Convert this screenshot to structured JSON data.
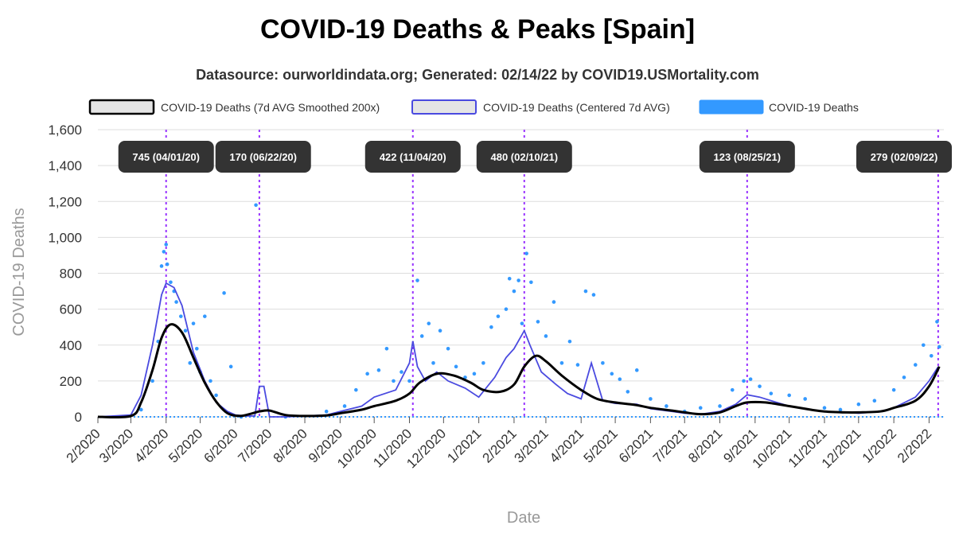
{
  "chart_data": {
    "type": "line",
    "title": "COVID-19 Deaths & Peaks [Spain]",
    "subtitle": "Datasource: ourworldindata.org; Generated: 02/14/22 by COVID19.USMortality.com",
    "xlabel": "Date",
    "ylabel": "COVID-19 Deaths",
    "ylim": [
      0,
      1600
    ],
    "y_ticks": [
      "0",
      "200",
      "400",
      "600",
      "800",
      "1,000",
      "1,200",
      "1,400",
      "1,600"
    ],
    "x_ticks": [
      "2/2020",
      "3/2020",
      "4/2020",
      "5/2020",
      "6/2020",
      "7/2020",
      "8/2020",
      "9/2020",
      "10/2020",
      "11/2020",
      "12/2020",
      "1/2021",
      "2/2021",
      "3/2021",
      "4/2021",
      "5/2021",
      "6/2021",
      "7/2021",
      "8/2021",
      "9/2021",
      "10/2021",
      "11/2021",
      "12/2021",
      "1/2022",
      "2/2022"
    ],
    "grid": true,
    "legend_position": "top",
    "colors": {
      "smoothed": "#000000",
      "avg7": "#4a4ae0",
      "deaths": "#3399ff",
      "peak_line": "#9933ff",
      "peak_box": "#333333"
    },
    "series": [
      {
        "name": "COVID-19 Deaths (7d AVG Smoothed 200x)",
        "style": "line",
        "x": [
          "2020-02-01",
          "2020-03-01",
          "2020-03-10",
          "2020-03-20",
          "2020-03-28",
          "2020-04-05",
          "2020-04-15",
          "2020-04-25",
          "2020-05-05",
          "2020-05-15",
          "2020-05-25",
          "2020-06-05",
          "2020-06-15",
          "2020-06-22",
          "2020-07-01",
          "2020-07-15",
          "2020-08-01",
          "2020-08-20",
          "2020-09-01",
          "2020-09-20",
          "2020-10-01",
          "2020-10-20",
          "2020-11-01",
          "2020-11-10",
          "2020-11-25",
          "2020-12-10",
          "2020-12-25",
          "2021-01-05",
          "2021-01-20",
          "2021-02-01",
          "2021-02-10",
          "2021-02-20",
          "2021-03-01",
          "2021-03-15",
          "2021-04-01",
          "2021-04-15",
          "2021-05-01",
          "2021-05-20",
          "2021-06-01",
          "2021-06-20",
          "2021-07-01",
          "2021-07-15",
          "2021-08-01",
          "2021-08-15",
          "2021-08-25",
          "2021-09-10",
          "2021-10-01",
          "2021-10-20",
          "2021-11-01",
          "2021-11-20",
          "2021-12-01",
          "2021-12-20",
          "2022-01-01",
          "2022-01-20",
          "2022-02-01",
          "2022-02-10"
        ],
        "y": [
          0,
          5,
          80,
          260,
          440,
          515,
          470,
          330,
          190,
          85,
          20,
          5,
          18,
          30,
          35,
          10,
          5,
          8,
          20,
          40,
          60,
          90,
          130,
          190,
          240,
          230,
          190,
          150,
          140,
          180,
          280,
          340,
          310,
          230,
          150,
          100,
          80,
          65,
          50,
          35,
          25,
          15,
          25,
          60,
          80,
          80,
          60,
          40,
          30,
          25,
          25,
          30,
          50,
          90,
          170,
          280
        ]
      },
      {
        "name": "COVID-19 Deaths (Centered 7d AVG)",
        "style": "line",
        "x": [
          "2020-02-01",
          "2020-03-01",
          "2020-03-10",
          "2020-03-20",
          "2020-03-28",
          "2020-04-01",
          "2020-04-08",
          "2020-04-15",
          "2020-04-25",
          "2020-05-05",
          "2020-05-15",
          "2020-05-25",
          "2020-06-01",
          "2020-06-10",
          "2020-06-18",
          "2020-06-22",
          "2020-06-26",
          "2020-07-01",
          "2020-07-15",
          "2020-08-01",
          "2020-08-20",
          "2020-09-01",
          "2020-09-20",
          "2020-10-01",
          "2020-10-20",
          "2020-11-01",
          "2020-11-04",
          "2020-11-08",
          "2020-11-15",
          "2020-11-25",
          "2020-12-05",
          "2020-12-20",
          "2021-01-01",
          "2021-01-15",
          "2021-01-25",
          "2021-02-01",
          "2021-02-10",
          "2021-02-15",
          "2021-02-25",
          "2021-03-10",
          "2021-03-20",
          "2021-04-01",
          "2021-04-10",
          "2021-04-20",
          "2021-05-01",
          "2021-05-20",
          "2021-06-01",
          "2021-06-20",
          "2021-07-01",
          "2021-07-15",
          "2021-08-01",
          "2021-08-15",
          "2021-08-25",
          "2021-09-05",
          "2021-09-20",
          "2021-10-01",
          "2021-10-20",
          "2021-11-01",
          "2021-11-20",
          "2021-12-01",
          "2021-12-20",
          "2022-01-01",
          "2022-01-20",
          "2022-02-01",
          "2022-02-09"
        ],
        "y": [
          0,
          10,
          120,
          400,
          680,
          745,
          720,
          620,
          360,
          200,
          80,
          30,
          10,
          5,
          5,
          170,
          170,
          0,
          0,
          5,
          10,
          30,
          60,
          110,
          150,
          300,
          422,
          280,
          200,
          250,
          200,
          160,
          110,
          220,
          330,
          380,
          480,
          400,
          250,
          180,
          130,
          100,
          300,
          90,
          75,
          70,
          45,
          30,
          20,
          15,
          30,
          70,
          123,
          110,
          80,
          60,
          40,
          30,
          25,
          20,
          30,
          50,
          110,
          200,
          279
        ]
      },
      {
        "name": "COVID-19 Deaths",
        "style": "scatter",
        "x": [
          "2020-03-10",
          "2020-03-20",
          "2020-03-25",
          "2020-03-28",
          "2020-03-30",
          "2020-04-01",
          "2020-04-02",
          "2020-04-05",
          "2020-04-08",
          "2020-04-10",
          "2020-04-14",
          "2020-04-18",
          "2020-04-22",
          "2020-04-25",
          "2020-04-28",
          "2020-05-01",
          "2020-05-05",
          "2020-05-10",
          "2020-05-15",
          "2020-05-22",
          "2020-05-28",
          "2020-06-06",
          "2020-06-19",
          "2020-07-15",
          "2020-08-20",
          "2020-09-05",
          "2020-09-15",
          "2020-09-25",
          "2020-10-05",
          "2020-10-12",
          "2020-10-18",
          "2020-10-25",
          "2020-11-01",
          "2020-11-08",
          "2020-11-12",
          "2020-11-18",
          "2020-11-22",
          "2020-11-28",
          "2020-12-05",
          "2020-12-12",
          "2020-12-20",
          "2020-12-28",
          "2021-01-05",
          "2021-01-12",
          "2021-01-18",
          "2021-01-25",
          "2021-01-28",
          "2021-02-01",
          "2021-02-05",
          "2021-02-08",
          "2021-02-12",
          "2021-02-16",
          "2021-02-22",
          "2021-03-01",
          "2021-03-08",
          "2021-03-15",
          "2021-03-22",
          "2021-03-29",
          "2021-04-05",
          "2021-04-12",
          "2021-04-20",
          "2021-04-28",
          "2021-05-05",
          "2021-05-12",
          "2021-05-20",
          "2021-06-01",
          "2021-06-15",
          "2021-07-01",
          "2021-07-15",
          "2021-08-01",
          "2021-08-12",
          "2021-08-22",
          "2021-08-28",
          "2021-09-05",
          "2021-09-15",
          "2021-10-01",
          "2021-10-15",
          "2021-11-01",
          "2021-11-15",
          "2021-12-01",
          "2021-12-15",
          "2022-01-01",
          "2022-01-10",
          "2022-01-20",
          "2022-01-27",
          "2022-02-03",
          "2022-02-08",
          "2022-02-10"
        ],
        "y": [
          40,
          200,
          420,
          840,
          920,
          960,
          850,
          750,
          700,
          640,
          560,
          480,
          300,
          520,
          380,
          250,
          560,
          200,
          120,
          690,
          280,
          0,
          1180,
          0,
          30,
          60,
          150,
          240,
          260,
          380,
          200,
          250,
          200,
          760,
          450,
          520,
          300,
          480,
          380,
          280,
          220,
          240,
          300,
          500,
          560,
          600,
          770,
          700,
          760,
          520,
          910,
          750,
          530,
          450,
          640,
          300,
          420,
          290,
          700,
          680,
          300,
          240,
          210,
          140,
          260,
          100,
          60,
          30,
          50,
          60,
          150,
          200,
          210,
          170,
          130,
          120,
          100,
          50,
          40,
          70,
          90,
          150,
          220,
          290,
          400,
          340,
          530,
          390
        ]
      }
    ],
    "peaks": [
      {
        "label": "745 (04/01/20)",
        "date": "2020-04-01",
        "value": 745
      },
      {
        "label": "170 (06/22/20)",
        "date": "2020-06-22",
        "value": 170
      },
      {
        "label": "422 (11/04/20)",
        "date": "2020-11-04",
        "value": 422
      },
      {
        "label": "480 (02/10/21)",
        "date": "2021-02-10",
        "value": 480
      },
      {
        "label": "123 (08/25/21)",
        "date": "2021-08-25",
        "value": 123
      },
      {
        "label": "279 (02/09/22)",
        "date": "2022-02-09",
        "value": 279
      }
    ]
  }
}
